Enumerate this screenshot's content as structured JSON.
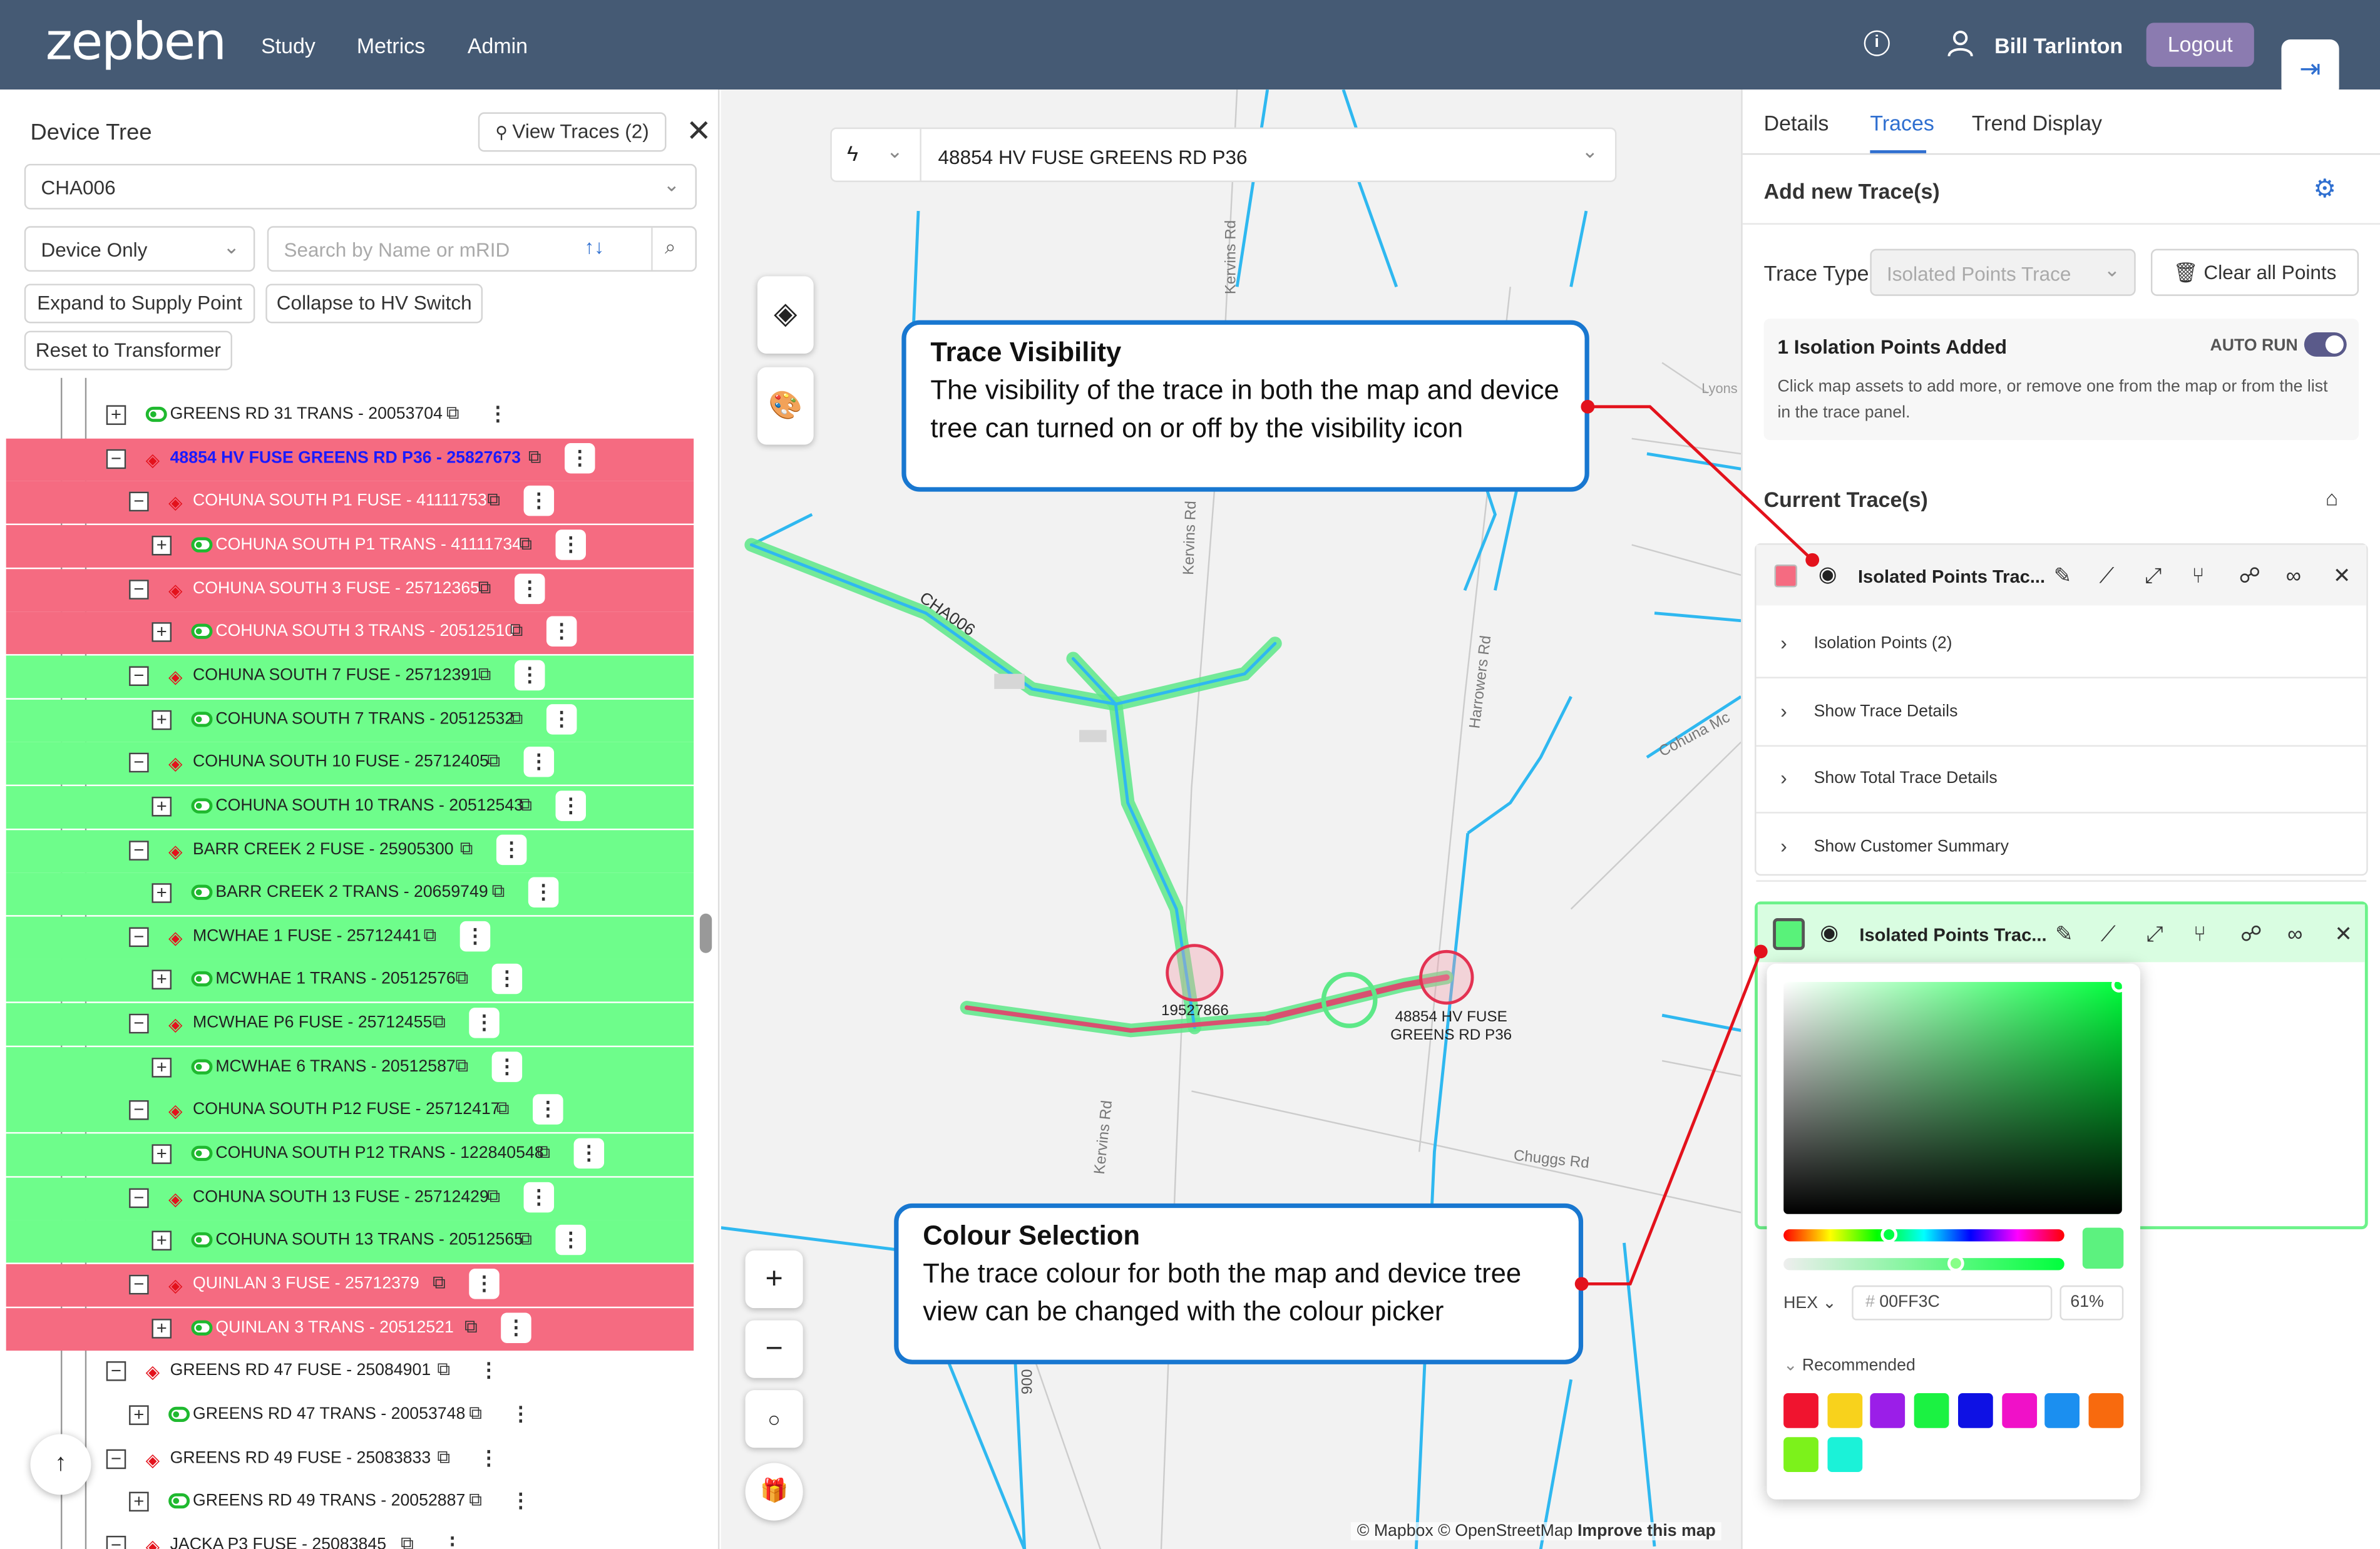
{
  "header": {
    "logo": "zepben",
    "nav": [
      "Study",
      "Metrics",
      "Admin"
    ],
    "user_name": "Bill Tarlinton",
    "logout_label": "Logout"
  },
  "device_tree": {
    "title": "Device Tree",
    "view_traces_label": "View Traces (2)",
    "feeder_value": "CHA006",
    "filter_value": "Device Only",
    "search_placeholder": "Search by Name or mRID",
    "expand_label": "Expand to Supply Point",
    "collapse_label": "Collapse to HV Switch",
    "reset_label": "Reset to Transformer",
    "rows": [
      {
        "label": "GREENS RD 31 TRANS - 20053704",
        "kind": "trans",
        "color": "white"
      },
      {
        "label": "48854 HV FUSE GREENS RD P36 - 25827673",
        "kind": "fuse",
        "color": "red-selected"
      },
      {
        "label": "COHUNA SOUTH P1 FUSE - 41111753",
        "kind": "fuse",
        "color": "red"
      },
      {
        "label": "COHUNA SOUTH P1 TRANS - 41111734",
        "kind": "trans",
        "color": "red"
      },
      {
        "label": "COHUNA SOUTH 3 FUSE - 25712365",
        "kind": "fuse",
        "color": "red"
      },
      {
        "label": "COHUNA SOUTH 3 TRANS - 20512510",
        "kind": "trans",
        "color": "red"
      },
      {
        "label": "COHUNA SOUTH 7 FUSE - 25712391",
        "kind": "fuse",
        "color": "green"
      },
      {
        "label": "COHUNA SOUTH 7 TRANS - 20512532",
        "kind": "trans",
        "color": "green"
      },
      {
        "label": "COHUNA SOUTH 10 FUSE - 25712405",
        "kind": "fuse",
        "color": "green"
      },
      {
        "label": "COHUNA SOUTH 10 TRANS - 20512543",
        "kind": "trans",
        "color": "green"
      },
      {
        "label": "BARR CREEK 2 FUSE - 25905300",
        "kind": "fuse",
        "color": "green"
      },
      {
        "label": "BARR CREEK 2 TRANS - 20659749",
        "kind": "trans",
        "color": "green"
      },
      {
        "label": "MCWHAE 1 FUSE - 25712441",
        "kind": "fuse",
        "color": "green"
      },
      {
        "label": "MCWHAE 1 TRANS - 20512576",
        "kind": "trans",
        "color": "green"
      },
      {
        "label": "MCWHAE P6 FUSE - 25712455",
        "kind": "fuse",
        "color": "green"
      },
      {
        "label": "MCWHAE 6 TRANS - 20512587",
        "kind": "trans",
        "color": "green"
      },
      {
        "label": "COHUNA SOUTH P12 FUSE - 25712417",
        "kind": "fuse",
        "color": "green"
      },
      {
        "label": "COHUNA SOUTH P12 TRANS - 122840548",
        "kind": "trans",
        "color": "green"
      },
      {
        "label": "COHUNA SOUTH 13 FUSE - 25712429",
        "kind": "fuse",
        "color": "green"
      },
      {
        "label": "COHUNA SOUTH 13 TRANS - 20512565",
        "kind": "trans",
        "color": "green"
      },
      {
        "label": "QUINLAN 3 FUSE - 25712379",
        "kind": "fuse",
        "color": "red"
      },
      {
        "label": "QUINLAN 3 TRANS - 20512521",
        "kind": "trans",
        "color": "red"
      },
      {
        "label": "GREENS RD 47 FUSE - 25084901",
        "kind": "fuse",
        "color": "white"
      },
      {
        "label": "GREENS RD 47 TRANS - 20053748",
        "kind": "trans",
        "color": "white"
      },
      {
        "label": "GREENS RD 49 FUSE - 25083833",
        "kind": "fuse",
        "color": "white"
      },
      {
        "label": "GREENS RD 49 TRANS - 20052887",
        "kind": "trans",
        "color": "white"
      },
      {
        "label": "JACKA P3 FUSE - 25083845",
        "kind": "fuse",
        "color": "white"
      }
    ]
  },
  "map": {
    "search_value": "48854 HV FUSE GREENS RD P36",
    "feeder_label": "CHA006",
    "roads": [
      "Kervins Rd",
      "Kervins Rd",
      "Kervins Rd",
      "Harrowers Rd",
      "Chuggs Rd",
      "Cohuna Mc",
      "Lyons",
      "900"
    ],
    "label_19527": "19527866",
    "label_fuse_line1": "48854 HV FUSE",
    "label_fuse_line2": "GREENS RD P36",
    "attribution_mapbox": "© Mapbox",
    "attribution_osm": "© OpenStreetMap",
    "attribution_improve": "Improve this map",
    "zoom_in": "+",
    "zoom_out": "−"
  },
  "callouts": {
    "visibility_title": "Trace Visibility",
    "visibility_body": "The visibility of the trace in both the map and device tree can turned on or off by the visibility icon",
    "colour_title": "Colour Selection",
    "colour_body": "The trace colour for both the map and device tree view can be changed with the colour picker"
  },
  "panel": {
    "tabs": [
      "Details",
      "Traces",
      "Trend Display"
    ],
    "active_tab": "Traces",
    "add_title": "Add new Trace(s)",
    "trace_type_label": "Trace Type",
    "trace_type_value": "Isolated Points Trace",
    "clear_label": "Clear all Points",
    "isolation_title": "1 Isolation Points Added",
    "auto_run_label": "AUTO RUN",
    "isolation_help": "Click map assets to add more, or remove one from the map or from the list in the trace panel.",
    "current_title": "Current Trace(s)",
    "trace1": {
      "name": "Isolated Points Trac...",
      "color": "#f56b81",
      "sections": [
        "Isolation Points (2)",
        "Show Trace Details",
        "Show Total Trace Details",
        "Show Customer Summary"
      ]
    },
    "trace2": {
      "name": "Isolated Points Trac...",
      "color": "#59f27a"
    }
  },
  "color_picker": {
    "format": "HEX",
    "hex_value": "00FF3C",
    "alpha": "61%",
    "recommended_label": "Recommended",
    "swatches": [
      "#f0142f",
      "#f8d21c",
      "#9b1ee8",
      "#1bf242",
      "#0e11e4",
      "#f011c8",
      "#1b8ff0",
      "#f86a0e",
      "#7cf21b",
      "#1bf2d8"
    ]
  }
}
